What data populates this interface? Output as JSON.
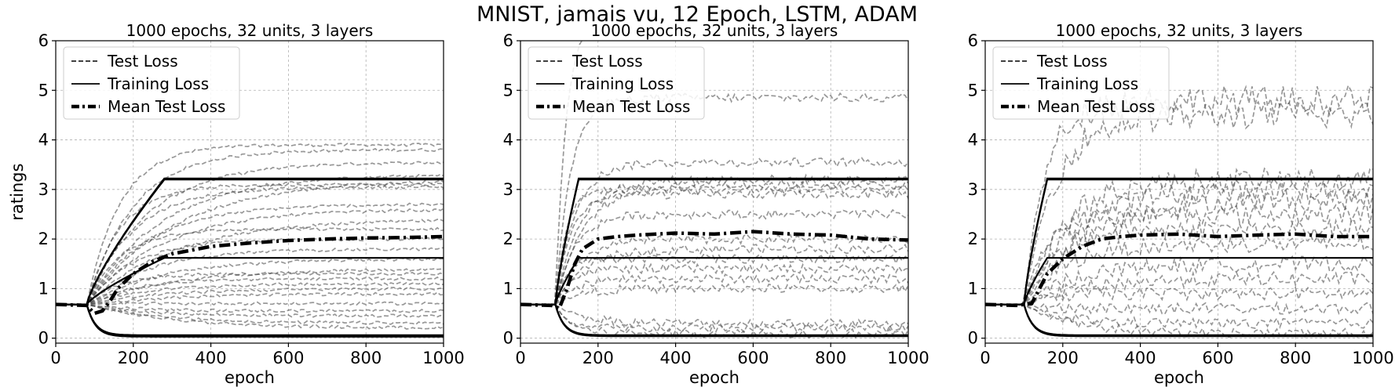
{
  "figure": {
    "title": "MNIST, jamais vu, 12 Epoch, LSTM, ADAM"
  },
  "legend": {
    "entries": [
      "Test Loss",
      "Training Loss",
      "Mean Test Loss"
    ],
    "placement": "upper-left"
  },
  "chart_data": [
    {
      "type": "line",
      "title": "1000 epochs, 32 units, 3 layers",
      "xlabel": "epoch",
      "ylabel": "ratings",
      "xlim": [
        0,
        1000
      ],
      "ylim": [
        -0.1,
        6
      ],
      "xticks": [
        0,
        200,
        400,
        600,
        800,
        1000
      ],
      "yticks": [
        0,
        1,
        2,
        3,
        4,
        5,
        6
      ],
      "grid": true,
      "test_loss_finals": [
        3.9,
        3.8,
        3.55,
        3.3,
        3.2,
        3.1,
        3.05,
        2.7,
        2.6,
        2.4,
        2.2,
        2.0,
        1.8,
        1.6,
        1.4,
        1.3,
        1.2,
        1.1,
        1.0,
        0.9,
        0.7,
        0.55,
        0.45,
        0.3,
        0.2
      ],
      "training_loss_finals": [
        3.22,
        3.2,
        1.62,
        0.06,
        0.04,
        0.03
      ],
      "mean_test_loss": {
        "x": [
          0,
          80,
          100,
          120,
          140,
          160,
          200,
          250,
          300,
          400,
          500,
          600,
          700,
          800,
          900,
          1000
        ],
        "y": [
          0.68,
          0.66,
          0.5,
          0.55,
          0.75,
          1.0,
          1.3,
          1.55,
          1.7,
          1.85,
          1.92,
          1.97,
          2.0,
          2.02,
          2.03,
          2.05
        ]
      }
    },
    {
      "type": "line",
      "title": "1000 epochs, 32 units, 3 layers",
      "xlabel": "epoch",
      "ylabel": "",
      "xlim": [
        0,
        1000
      ],
      "ylim": [
        -0.1,
        6
      ],
      "xticks": [
        0,
        200,
        400,
        600,
        800,
        1000
      ],
      "yticks": [
        0,
        1,
        2,
        3,
        4,
        5,
        6
      ],
      "grid": true,
      "test_loss_finals": [
        6.5,
        4.85,
        3.55,
        3.2,
        3.1,
        3.0,
        2.9,
        2.5,
        2.0,
        1.8,
        1.6,
        1.4,
        1.2,
        1.0,
        0.3,
        0.2,
        0.1
      ],
      "training_loss_finals": [
        3.22,
        3.2,
        1.62,
        0.06,
        0.04
      ],
      "mean_test_loss": {
        "x": [
          0,
          80,
          100,
          120,
          140,
          160,
          200,
          250,
          300,
          400,
          500,
          600,
          700,
          800,
          900,
          1000
        ],
        "y": [
          0.68,
          0.66,
          0.6,
          1.0,
          1.5,
          1.8,
          2.0,
          2.05,
          2.08,
          2.12,
          2.1,
          2.15,
          2.1,
          2.08,
          2.0,
          1.98
        ]
      }
    },
    {
      "type": "line",
      "title": "1000 epochs, 32 units, 3 layers",
      "xlabel": "epoch",
      "ylabel": "",
      "xlim": [
        0,
        1000
      ],
      "ylim": [
        -0.1,
        6
      ],
      "xticks": [
        0,
        200,
        400,
        600,
        800,
        1000
      ],
      "yticks": [
        0,
        1,
        2,
        3,
        4,
        5,
        6
      ],
      "grid": true,
      "test_loss_finals": [
        4.8,
        4.5,
        3.2,
        3.0,
        2.8,
        2.5,
        2.2,
        1.9,
        1.5,
        1.2,
        0.9,
        0.6,
        0.3,
        0.1
      ],
      "training_loss_finals": [
        3.22,
        3.2,
        1.62,
        0.06,
        0.04
      ],
      "mean_test_loss": {
        "x": [
          0,
          80,
          120,
          140,
          160,
          200,
          250,
          300,
          350,
          400,
          500,
          600,
          700,
          800,
          900,
          1000
        ],
        "y": [
          0.68,
          0.66,
          0.7,
          1.0,
          1.3,
          1.6,
          1.85,
          2.0,
          2.05,
          2.08,
          2.1,
          2.05,
          2.08,
          2.1,
          2.05,
          2.05
        ]
      }
    }
  ]
}
